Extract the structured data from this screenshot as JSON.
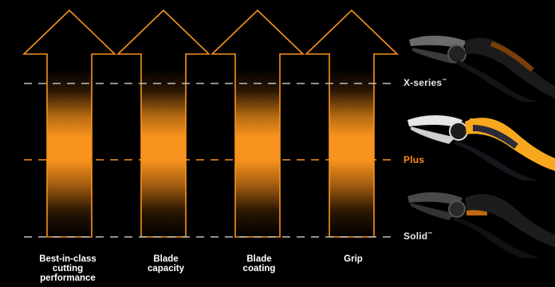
{
  "tiers": {
    "xseries": "X-series",
    "xseries_mark": "™",
    "plus": "Plus",
    "solid": "Solid",
    "solid_mark": "™"
  },
  "categories": [
    {
      "label": "Best-in-class\ncutting\nperformance"
    },
    {
      "label": "Blade\ncapacity"
    },
    {
      "label": "Blade\ncoating"
    },
    {
      "label": "Grip"
    }
  ],
  "colors": {
    "background": "#000000",
    "accent": "#f7931e",
    "dashed_line": "#bfbfbf",
    "plus_tier": "#ff8c1a"
  },
  "images": {
    "xseries_tool": "pruner-black",
    "plus_tool": "pruner-orange",
    "solid_tool": "pruner-grey"
  }
}
